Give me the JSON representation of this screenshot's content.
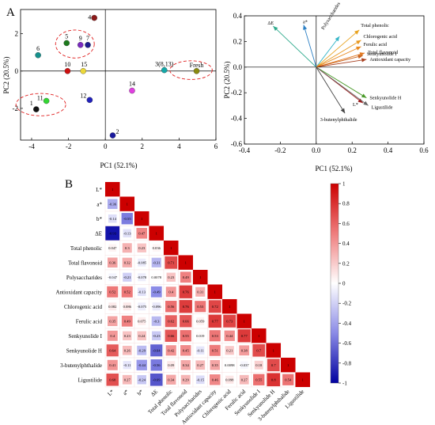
{
  "panel_a_label": "A",
  "panel_b_label": "B",
  "chart_data": [
    {
      "type": "scatter",
      "name": "PCA score plot",
      "xlabel": "PC1 (52.1%)",
      "ylabel": "PC2 (20.5%)",
      "xlim": [
        -4.6,
        6.0
      ],
      "ylim": [
        -3.7,
        3.3
      ],
      "xticks": [
        -4,
        -2,
        0,
        2,
        4,
        6
      ],
      "yticks": [
        -2,
        0,
        2
      ],
      "points": [
        {
          "label": "1",
          "x": -3.75,
          "y": -2.05,
          "color": "#111111"
        },
        {
          "label": "2",
          "x": 0.4,
          "y": -3.45,
          "color": "#1a1a9e"
        },
        {
          "label": "3(8,13)",
          "x": 3.2,
          "y": 0.05,
          "color": "#15a8a8"
        },
        {
          "label": "4",
          "x": -0.6,
          "y": 2.85,
          "color": "#8b1a1a"
        },
        {
          "label": "5",
          "x": -2.1,
          "y": 1.5,
          "color": "#1e7a1e"
        },
        {
          "label": "6",
          "x": -3.65,
          "y": 0.85,
          "color": "#16908c"
        },
        {
          "label": "7",
          "x": -0.95,
          "y": 1.4,
          "color": "#1c1c8c"
        },
        {
          "label": "9",
          "x": -1.35,
          "y": 1.4,
          "color": "#7a2bbf"
        },
        {
          "label": "10",
          "x": -2.05,
          "y": 0.0,
          "color": "#cc1010"
        },
        {
          "label": "11",
          "x": -3.2,
          "y": -1.6,
          "color": "#33d633"
        },
        {
          "label": "12",
          "x": -0.85,
          "y": -1.55,
          "color": "#2222bb"
        },
        {
          "label": "14",
          "x": 1.45,
          "y": -1.05,
          "color": "#e040e0"
        },
        {
          "label": "15",
          "x": -1.2,
          "y": 0.0,
          "color": "#ecd83a"
        },
        {
          "label": "Fresh",
          "x": 4.95,
          "y": 0.0,
          "color": "#8a8a10"
        }
      ],
      "ellipses": [
        {
          "cx": -1.65,
          "cy": 1.45,
          "rx": 1.05,
          "ry": 0.75
        },
        {
          "cx": 4.65,
          "cy": 0.05,
          "rx": 1.15,
          "ry": 0.5
        },
        {
          "cx": -3.5,
          "cy": -1.8,
          "rx": 1.35,
          "ry": 0.6
        }
      ]
    },
    {
      "type": "biplot",
      "name": "PCA loading plot",
      "xlabel": "PC1 (52.1%)",
      "ylabel": "PC2 (20.5%)",
      "xlim": [
        -0.4,
        0.6
      ],
      "ylim": [
        -0.6,
        0.4
      ],
      "xticks": [
        -0.4,
        -0.2,
        0.0,
        0.2,
        0.4,
        0.6
      ],
      "yticks": [
        -0.6,
        -0.4,
        -0.2,
        0.0,
        0.2,
        0.4
      ],
      "vectors": [
        {
          "label": "ΔE",
          "x": -0.24,
          "y": 0.32,
          "color": "#2eaa8c"
        },
        {
          "label": "a*",
          "x": -0.07,
          "y": 0.33,
          "color": "#2b7fc4"
        },
        {
          "label": "Polysaccharides",
          "x": 0.13,
          "y": 0.24,
          "color": "#38b6c8"
        },
        {
          "label": "Total phenolic",
          "x": 0.24,
          "y": 0.29,
          "color": "#e8a21e"
        },
        {
          "label": "Chlorogenic acid",
          "x": 0.25,
          "y": 0.21,
          "color": "#e8981e"
        },
        {
          "label": "Ferulic acid",
          "x": 0.25,
          "y": 0.16,
          "color": "#e8891e"
        },
        {
          "label": "Total flavonoid",
          "x": 0.27,
          "y": 0.11,
          "color": "#e0761c"
        },
        {
          "label": "Senkyunolide I",
          "x": 0.26,
          "y": 0.09,
          "color": "#c8621c"
        },
        {
          "label": "Antioxidant capacity",
          "x": 0.28,
          "y": 0.06,
          "color": "#a84020"
        },
        {
          "label": "Senkyunolide H",
          "x": 0.28,
          "y": -0.24,
          "color": "#4a9a2a"
        },
        {
          "label": "L*",
          "x": 0.26,
          "y": -0.28,
          "color": "#9e1c1c"
        },
        {
          "label": "Ligustilide",
          "x": 0.29,
          "y": -0.3,
          "color": "#666666"
        },
        {
          "label": "3-butenylphthalide",
          "x": 0.16,
          "y": -0.36,
          "color": "#444444"
        }
      ]
    },
    {
      "type": "heatmap",
      "name": "Correlation matrix",
      "variables": [
        "L*",
        "a*",
        "b*",
        "ΔE",
        "Total phenolic",
        "Total flavonoid",
        "Polysaccharides",
        "Antioxidant capacity",
        "Chlorogenic acid",
        "Ferulic acid",
        "Senkyunolide I",
        "Senkyunolide H",
        "3-butenylphthalide",
        "Ligustilide"
      ],
      "matrix": [
        [
          "1"
        ],
        [
          "-0.36",
          "1"
        ],
        [
          "-0.14",
          "-0.55",
          "1"
        ],
        [
          "-0.93",
          "-0.13",
          "0.47",
          "1"
        ],
        [
          "0.047",
          "0.3",
          "0.23",
          "0.036",
          "1"
        ],
        [
          "0.36",
          "0.32",
          "-0.085",
          "-0.31",
          "0.71",
          "1"
        ],
        [
          "-0.047",
          "-0.21",
          "-0.078",
          "0.0078",
          "0.23",
          "0.49",
          "1"
        ],
        [
          "0.52",
          "0.52",
          "-0.13",
          "-0.49",
          "0.4",
          "0.76",
          "0.31",
          "1"
        ],
        [
          "0.082",
          "0.086",
          "-0.075",
          "-0.096",
          "0.56",
          "0.76",
          "0.53",
          "0.72",
          "1"
        ],
        [
          "0.35",
          "0.49",
          "0.075",
          "-0.3",
          "0.62",
          "0.66",
          "0.059",
          "0.77",
          "0.73",
          "1"
        ],
        [
          "0.4",
          "0.23",
          "0.24",
          "-0.23",
          "0.66",
          "0.55",
          "0.019",
          "0.53",
          "0.44",
          "0.77",
          "1"
        ],
        [
          "0.64",
          "0.26",
          "-0.29",
          "-0.64",
          "0.42",
          "0.45",
          "-0.11",
          "0.51",
          "0.21",
          "0.38",
          "0.7",
          "1"
        ],
        [
          "0.41",
          "-0.11",
          "-0.44",
          "-0.56",
          "0.09",
          "0.34",
          "0.27",
          "0.35",
          "0.0098",
          "-0.037",
          "0.18",
          "0.7",
          "1"
        ],
        [
          "0.68",
          "0.27",
          "-0.24",
          "-0.69",
          "0.34",
          "0.29",
          "-0.15",
          "0.46",
          "0.098",
          "0.27",
          "0.55",
          "0.8",
          "0.54",
          "1"
        ]
      ],
      "colorbar": {
        "min": -1,
        "max": 1,
        "ticks": [
          "1",
          "0.8",
          "0.6",
          "0.4",
          "0.2",
          "0",
          "-0.2",
          "-0.4",
          "-0.6",
          "-0.8",
          "-1"
        ]
      }
    }
  ]
}
